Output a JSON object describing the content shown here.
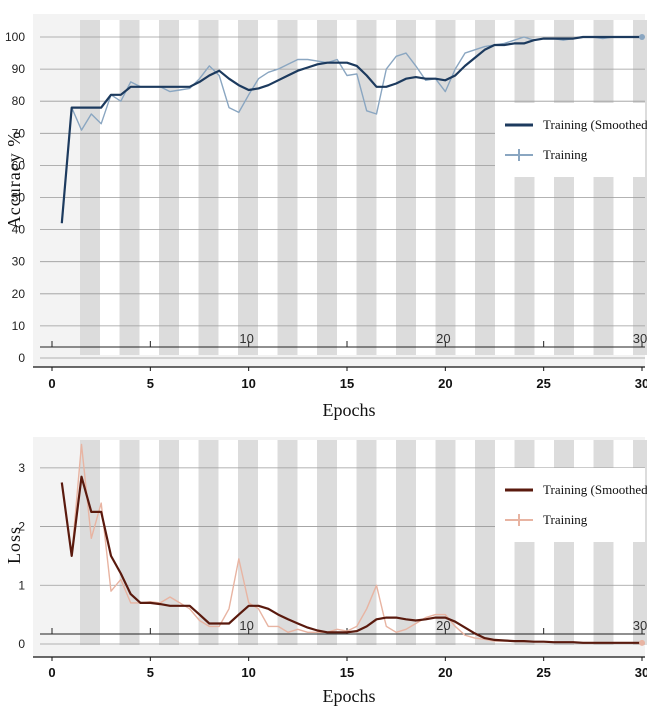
{
  "chart_data": [
    {
      "type": "line",
      "xlabel": "Epochs",
      "ylabel": "Accuracy %",
      "xlim": [
        0,
        30
      ],
      "ylim": [
        0,
        100
      ],
      "x_ticks": [
        0,
        5,
        10,
        15,
        20,
        25,
        30
      ],
      "x_tick_labels": [
        "0",
        "5",
        "10",
        "15",
        "20",
        "25",
        "30"
      ],
      "y_ticks": [
        0,
        10,
        20,
        30,
        40,
        50,
        60,
        70,
        80,
        90,
        100
      ],
      "y_tick_labels": [
        "0",
        "10",
        "20",
        "30",
        "40",
        "50",
        "60",
        "70",
        "80",
        "90",
        "100"
      ],
      "inner_labels": [
        {
          "x": 10,
          "text": "10"
        },
        {
          "x": 20,
          "text": "20"
        },
        {
          "x": 30,
          "text": "30"
        }
      ],
      "grid": true,
      "legend_position": "right",
      "series": [
        {
          "name": "Training (Smoothed)",
          "color": "#1c3a5e",
          "x": [
            0.5,
            1,
            1.5,
            2,
            2.5,
            3,
            3.5,
            4,
            4.5,
            5,
            5.5,
            6,
            6.5,
            7,
            7.5,
            8,
            8.5,
            9,
            9.5,
            10,
            10.5,
            11,
            11.5,
            12,
            12.5,
            13,
            13.5,
            14,
            14.5,
            15,
            15.5,
            16,
            16.5,
            17,
            17.5,
            18,
            18.5,
            19,
            19.5,
            20,
            20.5,
            21,
            21.5,
            22,
            22.5,
            23,
            23.5,
            24,
            24.5,
            25,
            25.5,
            26,
            26.5,
            27,
            27.5,
            28,
            28.5,
            29,
            29.5,
            30
          ],
          "values": [
            42,
            78,
            78,
            78,
            78,
            82,
            82,
            84.5,
            84.5,
            84.5,
            84.5,
            84.5,
            84.5,
            84.5,
            86,
            88,
            89.5,
            87,
            85,
            83.5,
            84,
            85,
            86.5,
            88,
            89.5,
            90.5,
            91.5,
            92,
            92,
            92,
            91,
            88,
            84.5,
            84.5,
            85.5,
            87,
            87.5,
            87,
            87,
            86.5,
            88,
            91,
            93.5,
            96,
            97.5,
            97.5,
            98,
            98,
            99,
            99.5,
            99.5,
            99.5,
            99.5,
            100,
            100,
            100,
            100,
            100,
            100,
            100
          ]
        },
        {
          "name": "Training",
          "color": "#8aa6c1",
          "x": [
            0.5,
            1,
            1.5,
            2,
            2.5,
            3,
            3.5,
            4,
            4.5,
            5,
            5.5,
            6,
            6.5,
            7,
            7.5,
            8,
            8.5,
            9,
            9.5,
            10,
            10.5,
            11,
            11.5,
            12,
            12.5,
            13,
            13.5,
            14,
            14.5,
            15,
            15.5,
            16,
            16.5,
            17,
            17.5,
            18,
            18.5,
            19,
            19.5,
            20,
            20.5,
            21,
            21.5,
            22,
            22.5,
            23,
            23.5,
            24,
            24.5,
            25,
            25.5,
            26,
            26.5,
            27,
            27.5,
            28,
            28.5,
            29,
            29.5,
            30
          ],
          "values": [
            42,
            78,
            71,
            76,
            73,
            82,
            80,
            86,
            84.5,
            84.5,
            84.5,
            83,
            83.5,
            84,
            87,
            91,
            88,
            78,
            76.5,
            82,
            87,
            89,
            90,
            91.5,
            93,
            93,
            92.5,
            92,
            93,
            88,
            88.5,
            77,
            76,
            90,
            94,
            95,
            91,
            86.5,
            87,
            83,
            90,
            95,
            96,
            97,
            97.5,
            98,
            99,
            100,
            99,
            99.5,
            99.5,
            99,
            99.5,
            100,
            100,
            99.5,
            100,
            100,
            100,
            100
          ]
        }
      ]
    },
    {
      "type": "line",
      "xlabel": "Epochs",
      "ylabel": "Loss",
      "xlim": [
        0,
        30
      ],
      "ylim": [
        0,
        3.5
      ],
      "x_ticks": [
        0,
        5,
        10,
        15,
        20,
        25,
        30
      ],
      "x_tick_labels": [
        "0",
        "5",
        "10",
        "15",
        "20",
        "25",
        "30"
      ],
      "y_ticks": [
        0,
        1,
        2,
        3
      ],
      "y_tick_labels": [
        "0",
        "1",
        "2",
        "3"
      ],
      "inner_labels": [
        {
          "x": 10,
          "text": "10"
        },
        {
          "x": 20,
          "text": "20"
        },
        {
          "x": 30,
          "text": "30"
        }
      ],
      "grid": true,
      "legend_position": "right",
      "series": [
        {
          "name": "Training (Smoothed)",
          "color": "#5a1a0e",
          "x": [
            0.5,
            1,
            1.5,
            2,
            2.5,
            3,
            3.5,
            4,
            4.5,
            5,
            5.5,
            6,
            6.5,
            7,
            7.5,
            8,
            8.5,
            9,
            9.5,
            10,
            10.5,
            11,
            11.5,
            12,
            12.5,
            13,
            13.5,
            14,
            14.5,
            15,
            15.5,
            16,
            16.5,
            17,
            17.5,
            18,
            18.5,
            19,
            19.5,
            20,
            20.5,
            21,
            21.5,
            22,
            22.5,
            23,
            23.5,
            24,
            24.5,
            25,
            25.5,
            26,
            26.5,
            27,
            27.5,
            28,
            28.5,
            29,
            29.5,
            30
          ],
          "values": [
            2.75,
            1.5,
            2.85,
            2.25,
            2.25,
            1.5,
            1.2,
            0.85,
            0.7,
            0.7,
            0.68,
            0.65,
            0.65,
            0.65,
            0.5,
            0.35,
            0.35,
            0.35,
            0.5,
            0.65,
            0.65,
            0.6,
            0.5,
            0.42,
            0.35,
            0.28,
            0.23,
            0.2,
            0.2,
            0.2,
            0.22,
            0.3,
            0.42,
            0.45,
            0.45,
            0.42,
            0.4,
            0.42,
            0.45,
            0.45,
            0.38,
            0.28,
            0.18,
            0.1,
            0.07,
            0.06,
            0.05,
            0.05,
            0.04,
            0.04,
            0.03,
            0.03,
            0.03,
            0.02,
            0.02,
            0.02,
            0.02,
            0.02,
            0.02,
            0.02
          ]
        },
        {
          "name": "Training",
          "color": "#e8b4a2",
          "x": [
            0.5,
            1,
            1.5,
            2,
            2.5,
            3,
            3.5,
            4,
            4.5,
            5,
            5.5,
            6,
            6.5,
            7,
            7.5,
            8,
            8.5,
            9,
            9.5,
            10,
            10.5,
            11,
            11.5,
            12,
            12.5,
            13,
            13.5,
            14,
            14.5,
            15,
            15.5,
            16,
            16.5,
            17,
            17.5,
            18,
            18.5,
            19,
            19.5,
            20,
            20.5,
            21,
            21.5,
            22,
            22.5,
            23,
            23.5,
            24,
            24.5,
            25,
            25.5,
            26,
            26.5,
            27,
            27.5,
            28,
            28.5,
            29,
            29.5,
            30
          ],
          "values": [
            2.75,
            1.5,
            3.4,
            1.8,
            2.4,
            0.9,
            1.1,
            0.7,
            0.7,
            0.72,
            0.7,
            0.8,
            0.7,
            0.6,
            0.4,
            0.3,
            0.3,
            0.6,
            1.45,
            0.7,
            0.6,
            0.3,
            0.3,
            0.2,
            0.25,
            0.2,
            0.2,
            0.2,
            0.25,
            0.22,
            0.3,
            0.6,
            1.0,
            0.3,
            0.2,
            0.25,
            0.35,
            0.45,
            0.5,
            0.5,
            0.3,
            0.15,
            0.1,
            0.08,
            0.05,
            0.05,
            0.05,
            0.04,
            0.04,
            0.04,
            0.03,
            0.03,
            0.03,
            0.02,
            0.02,
            0.02,
            0.02,
            0.02,
            0.02,
            0.02
          ]
        }
      ]
    }
  ]
}
